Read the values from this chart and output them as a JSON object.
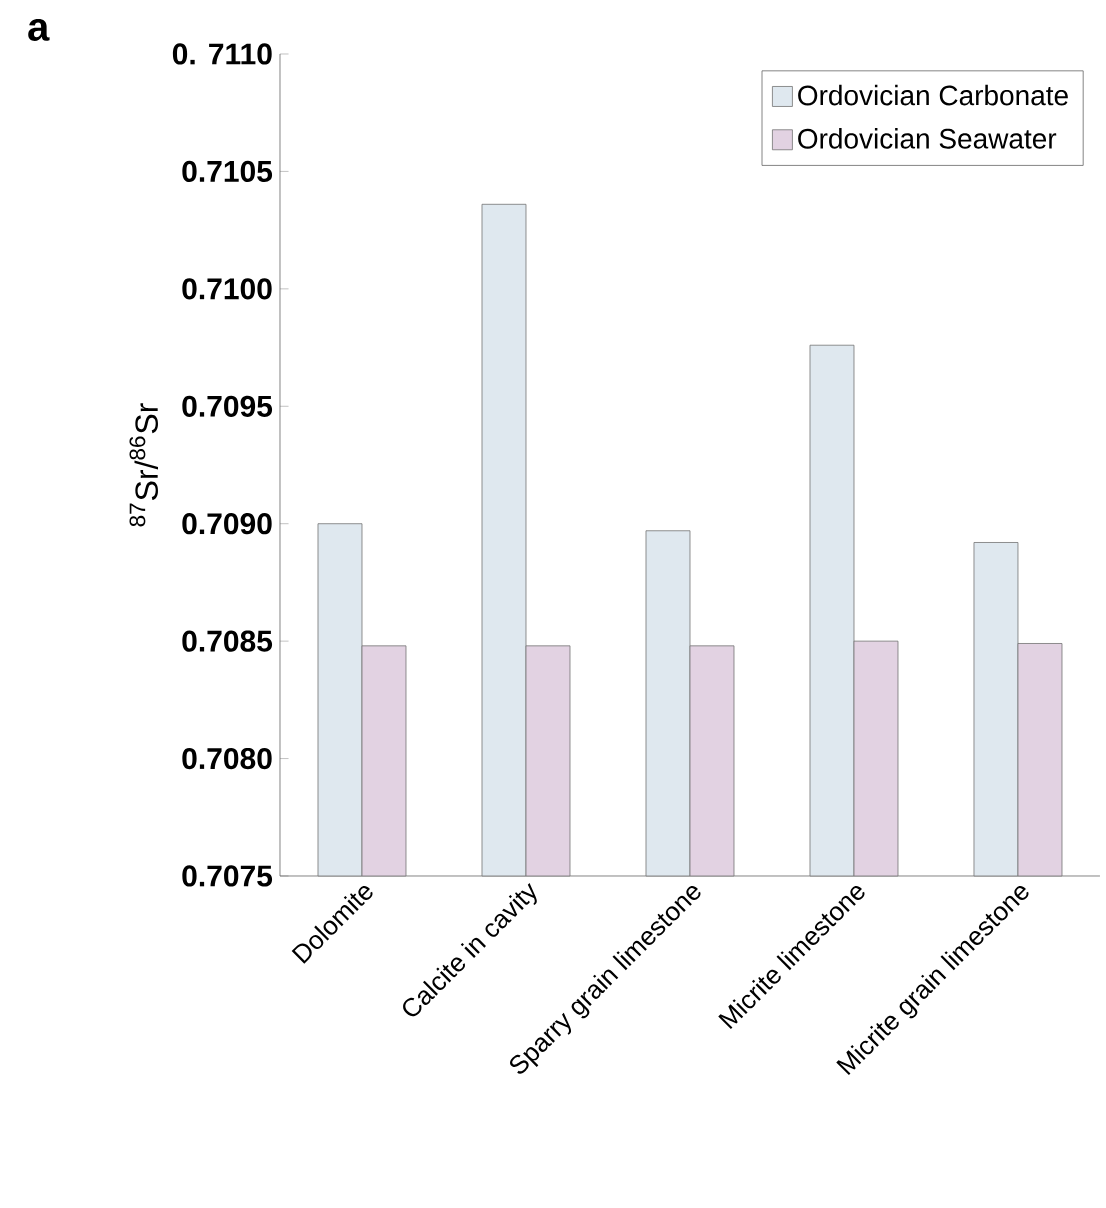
{
  "chart_data": {
    "type": "bar",
    "ylabel": "$^{87}$Sr/$^{86}$Sr",
    "annotations": [
      "a"
    ],
    "categories": [
      "Dolomite",
      "Calcite in cavity",
      "Sparry grain limestone",
      "Micrite limestone",
      "Micrite grain limestone"
    ],
    "series": [
      {
        "name": "Ordovician Carbonate",
        "color": "#dfe8ef",
        "values": [
          0.709,
          0.71036,
          0.70897,
          0.70976,
          0.70892
        ]
      },
      {
        "name": "Ordovician Seawater",
        "color": "#e2d2e2",
        "values": [
          0.70848,
          0.70848,
          0.70848,
          0.7085,
          0.70849
        ]
      }
    ],
    "ylim": [
      0.7075,
      0.711
    ],
    "yticks": [
      0.7075,
      {
        "value": 0.708,
        "label": "0.7080"
      },
      0.7085,
      {
        "value": 0.709,
        "label": "0.7090"
      },
      0.7095,
      {
        "value": 0.71,
        "label": "0.7100"
      },
      0.7105,
      {
        "value": 0.711,
        "label": "0. 7110"
      }
    ],
    "legend": "top right",
    "grid": false
  }
}
